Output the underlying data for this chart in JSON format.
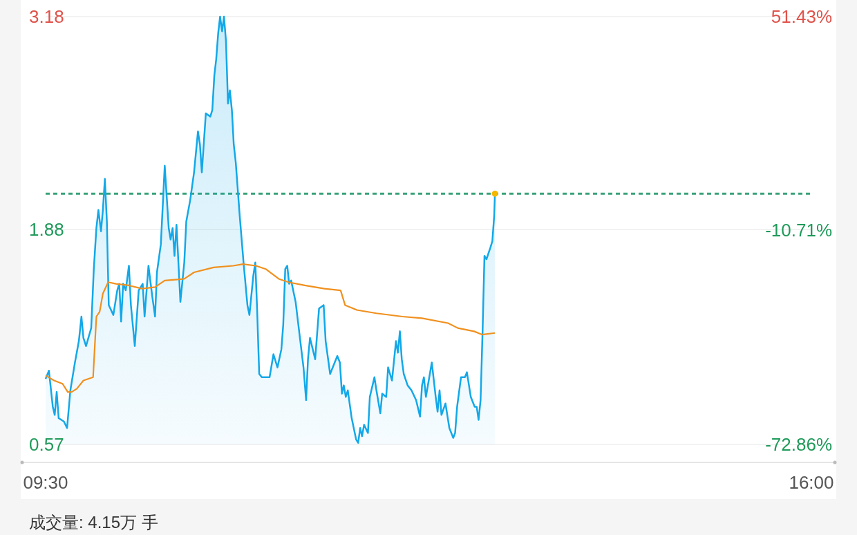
{
  "chart_data": {
    "type": "line",
    "xlim": [
      9.5,
      16
    ],
    "xticks": [
      {
        "value": 9.5,
        "label": "09:30"
      },
      {
        "value": 16,
        "label": "16:00"
      }
    ],
    "ylim": [
      0.57,
      3.18
    ],
    "yticks": [
      0.57,
      1.88,
      3.18
    ],
    "y2lim": [
      -72.86,
      51.43
    ],
    "y2ticks": [
      {
        "value": -72.86,
        "label": "-72.86%"
      },
      {
        "value": -10.71,
        "label": "-10.71%"
      },
      {
        "value": 51.43,
        "label": "51.43%"
      }
    ],
    "grid": "y",
    "ref_lines": [
      {
        "axis": "y",
        "value": 2.1,
        "color": "#3aa37a",
        "line_style": "dashed"
      }
    ],
    "annotations": [
      "成交量:  4.15万 手"
    ],
    "series": [
      {
        "type": "area",
        "color": "#13a8e8",
        "x": [
          9.5,
          9.528,
          9.561,
          9.577,
          9.594,
          9.611,
          9.655,
          9.682,
          9.71,
          9.749,
          9.782,
          9.804,
          9.821,
          9.843,
          9.887,
          9.909,
          9.931,
          9.948,
          9.97,
          9.986,
          10.003,
          10.02,
          10.036,
          10.075,
          10.108,
          10.125,
          10.141,
          10.158,
          10.18,
          10.207,
          10.224,
          10.257,
          10.29,
          10.324,
          10.34,
          10.373,
          10.406,
          10.429,
          10.445,
          10.478,
          10.511,
          10.545,
          10.561,
          10.578,
          10.594,
          10.611,
          10.644,
          10.677,
          10.694,
          10.727,
          10.76,
          10.793,
          10.81,
          10.826,
          10.86,
          10.898,
          10.915,
          10.932,
          10.948,
          10.965,
          10.981,
          10.998,
          11.014,
          11.031,
          11.048,
          11.064,
          11.081,
          11.097,
          11.114,
          11.147,
          11.18,
          11.213,
          11.23,
          11.263,
          11.28,
          11.296,
          11.313,
          11.335,
          11.379,
          11.401,
          11.434,
          11.468,
          11.501,
          11.517,
          11.534,
          11.551,
          11.567,
          11.584,
          11.622,
          11.667,
          11.689,
          11.711,
          11.727,
          11.744,
          11.788,
          11.821,
          11.86,
          11.877,
          11.915,
          11.976,
          11.998,
          12.015,
          12.031,
          12.048,
          12.065,
          12.098,
          12.136,
          12.153,
          12.17,
          12.186,
          12.203,
          12.236,
          12.252,
          12.291,
          12.308,
          12.341,
          12.357,
          12.391,
          12.407,
          12.44,
          12.474,
          12.49,
          12.507,
          12.523,
          12.54,
          12.573,
          12.606,
          12.645,
          12.678,
          12.695,
          12.711,
          12.728,
          12.778,
          12.811,
          12.827,
          12.844,
          12.86,
          12.894,
          12.927,
          12.96,
          12.976,
          12.993,
          13.026,
          13.059,
          13.076,
          13.109,
          13.142,
          13.159,
          13.175,
          13.192,
          13.209,
          13.225,
          13.242,
          13.275,
          13.292,
          13.308,
          13.314
        ],
        "values": [
          0.97,
          1.02,
          0.8,
          0.75,
          0.89,
          0.73,
          0.71,
          0.67,
          0.9,
          1.07,
          1.2,
          1.35,
          1.22,
          1.17,
          1.28,
          1.64,
          1.89,
          2.0,
          1.87,
          2.0,
          2.19,
          1.93,
          1.42,
          1.36,
          1.51,
          1.55,
          1.32,
          1.55,
          1.51,
          1.66,
          1.42,
          1.17,
          1.51,
          1.55,
          1.35,
          1.66,
          1.47,
          1.35,
          1.62,
          1.79,
          2.27,
          1.89,
          1.82,
          1.89,
          1.72,
          1.91,
          1.44,
          1.68,
          1.93,
          2.06,
          2.23,
          2.48,
          2.4,
          2.23,
          2.59,
          2.57,
          2.61,
          2.82,
          2.92,
          3.08,
          3.18,
          3.09,
          3.18,
          3.03,
          2.65,
          2.73,
          2.61,
          2.4,
          2.29,
          1.97,
          1.68,
          1.42,
          1.36,
          1.6,
          1.68,
          1.38,
          1.0,
          0.98,
          0.98,
          0.98,
          1.12,
          1.04,
          1.15,
          1.3,
          1.64,
          1.66,
          1.55,
          1.57,
          1.44,
          1.17,
          1.04,
          0.84,
          1.09,
          1.22,
          1.09,
          1.4,
          1.42,
          1.2,
          1.0,
          1.11,
          1.07,
          0.88,
          0.93,
          0.86,
          0.9,
          0.73,
          0.6,
          0.58,
          0.67,
          0.62,
          0.69,
          0.64,
          0.86,
          0.98,
          0.9,
          0.76,
          0.88,
          0.86,
          1.04,
          0.96,
          1.2,
          1.13,
          1.26,
          1.09,
          1.0,
          0.93,
          0.9,
          0.84,
          0.74,
          0.93,
          0.98,
          0.86,
          1.07,
          0.86,
          0.77,
          0.9,
          0.75,
          0.82,
          0.67,
          0.61,
          0.64,
          0.8,
          0.98,
          0.98,
          1.01,
          0.86,
          0.8,
          0.8,
          0.72,
          0.84,
          1.26,
          1.72,
          1.7,
          1.77,
          1.81,
          1.97,
          2.1
        ]
      },
      {
        "type": "line",
        "color": "#f0901e",
        "x": [
          9.5,
          9.572,
          9.644,
          9.688,
          9.721,
          9.765,
          9.821,
          9.903,
          9.931,
          9.959,
          9.986,
          10.031,
          10.097,
          10.207,
          10.318,
          10.429,
          10.511,
          10.677,
          10.76,
          10.926,
          11.092,
          11.175,
          11.285,
          11.368,
          11.479,
          11.562,
          11.7,
          11.866,
          12.004,
          12.042,
          12.142,
          12.308,
          12.529,
          12.695,
          12.916,
          12.999,
          13.137,
          13.204,
          13.314
        ],
        "values": [
          0.99,
          0.96,
          0.94,
          0.89,
          0.89,
          0.91,
          0.96,
          0.98,
          1.35,
          1.38,
          1.49,
          1.56,
          1.55,
          1.54,
          1.52,
          1.53,
          1.57,
          1.58,
          1.62,
          1.65,
          1.66,
          1.67,
          1.66,
          1.64,
          1.58,
          1.56,
          1.54,
          1.52,
          1.51,
          1.42,
          1.39,
          1.37,
          1.35,
          1.34,
          1.31,
          1.28,
          1.26,
          1.24,
          1.25
        ]
      },
      {
        "type": "scatter",
        "color": "#f5b800",
        "x": [
          13.314
        ],
        "values": [
          2.1
        ]
      }
    ]
  }
}
